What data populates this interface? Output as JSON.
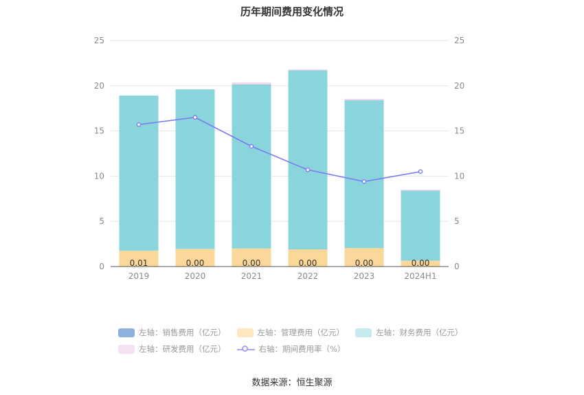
{
  "chart_data": {
    "type": "bar",
    "title": "历年期间费用变化情况",
    "categories": [
      "2019",
      "2020",
      "2021",
      "2022",
      "2023",
      "2024H1"
    ],
    "left_axis": {
      "ylim": [
        0,
        25
      ],
      "ticks": [
        "0",
        "5",
        "10",
        "15",
        "20",
        "25"
      ]
    },
    "right_axis": {
      "ylim": [
        0,
        25
      ],
      "ticks": [
        "0",
        "5",
        "10",
        "15",
        "20",
        "25"
      ]
    },
    "stacked": true,
    "series": [
      {
        "name": "左轴：销售费用（亿元）",
        "axis": "left",
        "color": "#8eb0dc",
        "values": [
          0.01,
          0.0,
          0.0,
          0.0,
          0.0,
          0.0
        ]
      },
      {
        "name": "左轴：管理费用（亿元）",
        "axis": "left",
        "color": "#fbd89a",
        "values": [
          1.75,
          1.95,
          2.0,
          1.9,
          2.05,
          0.65
        ]
      },
      {
        "name": "左轴：财务费用（亿元）",
        "axis": "left",
        "color": "#89d5db",
        "values": [
          17.15,
          17.65,
          18.15,
          19.8,
          16.35,
          7.75
        ]
      },
      {
        "name": "左轴：研发费用（亿元）",
        "axis": "left",
        "color": "#f1d3ec",
        "values": [
          0.0,
          0.0,
          0.2,
          0.1,
          0.15,
          0.1
        ]
      }
    ],
    "line_series": {
      "name": "右轴：期间费用率（%）",
      "axis": "right",
      "color": "#7b7cf2",
      "values": [
        15.7,
        16.5,
        13.3,
        10.7,
        9.4,
        10.5
      ]
    },
    "data_labels": [
      "0.01",
      "0.00",
      "0.00",
      "0.00",
      "0.00",
      "0.00"
    ],
    "grid": true,
    "legend_position": "bottom"
  },
  "legend": {
    "items": [
      {
        "label": "左轴：销售费用（亿元）",
        "color": "#8eb0dc"
      },
      {
        "label": "左轴：管理费用（亿元）",
        "color": "#fde6c0"
      },
      {
        "label": "左轴：财务费用（亿元）",
        "color": "#c3ebee"
      },
      {
        "label": "左轴：研发费用（亿元）",
        "color": "#f6e1f3"
      },
      {
        "label": "右轴：期间费用率（%）",
        "color": "#a6a4f1"
      }
    ]
  },
  "source": "数据来源：恒生聚源"
}
